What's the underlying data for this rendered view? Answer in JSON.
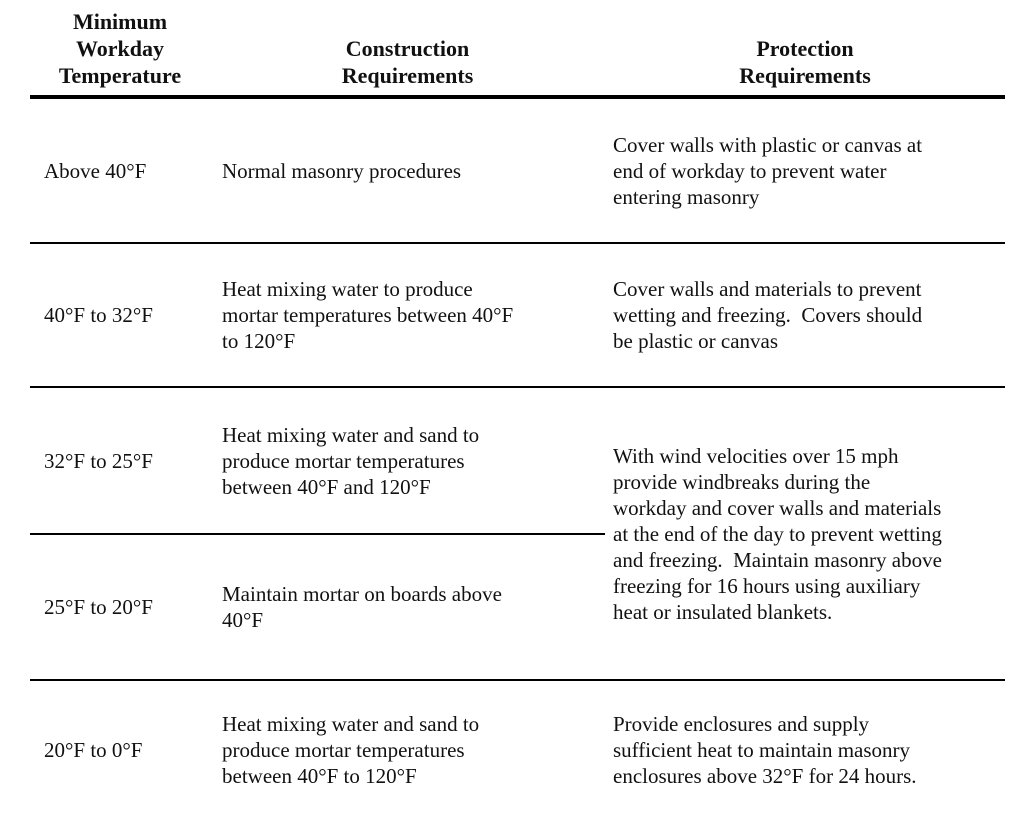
{
  "colors": {
    "text": "#111111",
    "rule": "#000000",
    "background": "#ffffff"
  },
  "table": {
    "headers": [
      {
        "label": "Minimum\nWorkday\nTemperature"
      },
      {
        "label": "Construction\nRequirements"
      },
      {
        "label": "Protection\nRequirements"
      }
    ],
    "rows": [
      {
        "temperature": "Above 40°F",
        "construction": "Normal masonry procedures",
        "protection": "Cover walls with plastic or canvas at\nend of workday to prevent water\nentering masonry"
      },
      {
        "temperature": "40°F to 32°F",
        "construction": "Heat mixing water to produce\nmortar temperatures between 40°F\nto 120°F",
        "protection": "Cover walls and materials to prevent\nwetting and freezing.  Covers should\nbe plastic or canvas"
      },
      {
        "temperature": "32°F to 25°F",
        "construction": "Heat mixing water and sand to\nproduce mortar temperatures\nbetween 40°F and 120°F",
        "protection": "With wind velocities over 15 mph\nprovide windbreaks during the\nworkday and cover walls and materials\nat the end of the day to prevent wetting\nand freezing.  Maintain masonry above\nfreezing for 16 hours using auxiliary\nheat or insulated blankets.",
        "protection_rowspan": 2
      },
      {
        "temperature": "25°F to 20°F",
        "construction": "Maintain mortar on boards above\n40°F",
        "protection": ""
      },
      {
        "temperature": "20°F to 0°F",
        "construction": "Heat mixing water and sand to\nproduce mortar temperatures\nbetween 40°F to 120°F",
        "protection": "Provide enclosures and supply\nsufficient heat to maintain masonry\nenclosures above 32°F for 24 hours."
      }
    ]
  }
}
